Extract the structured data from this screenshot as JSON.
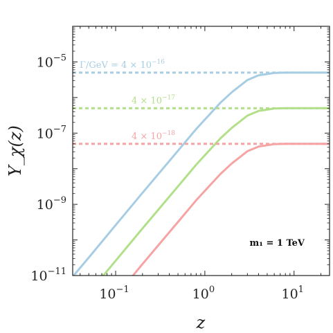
{
  "chart_data": {
    "type": "line",
    "title": "",
    "xlabel": "z",
    "ylabel": "Y_χ(z)",
    "xscale": "log",
    "yscale": "log",
    "xlim": [
      0.033,
      25
    ],
    "ylim": [
      1e-11,
      0.0001
    ],
    "grid": false,
    "x_ticks": [
      {
        "value": 0.1,
        "base": "10",
        "exp": "−1"
      },
      {
        "value": 1,
        "base": "10",
        "exp": "0"
      },
      {
        "value": 10,
        "base": "10",
        "exp": "1"
      }
    ],
    "y_ticks": [
      {
        "value": 1e-11,
        "base": "10",
        "exp": "−11"
      },
      {
        "value": 1e-09,
        "base": "10",
        "exp": "−9"
      },
      {
        "value": 1e-07,
        "base": "10",
        "exp": "−7"
      },
      {
        "value": 1e-05,
        "base": "10",
        "exp": "−5"
      }
    ],
    "inset_label": "m₁ = 1 TeV",
    "series": [
      {
        "annotation": "Γ/GeV = 4 × 10",
        "annotation_exp": "−16",
        "color": "#a6cde3",
        "plateau": 5e-06,
        "x": [
          0.033,
          0.05,
          0.1,
          0.2,
          0.3,
          0.5,
          0.8,
          1,
          1.5,
          2,
          3,
          4,
          6,
          8,
          10,
          15,
          25
        ],
        "y": [
          9.3e-12,
          3.2e-11,
          2.6e-10,
          2.1e-09,
          7e-09,
          3.2e-08,
          1.3e-07,
          2.4e-07,
          7.2e-07,
          1.4e-06,
          3.1e-06,
          4.2e-06,
          4.9e-06,
          5e-06,
          5e-06,
          5e-06,
          5e-06
        ]
      },
      {
        "annotation": "4 × 10",
        "annotation_exp": "−17",
        "color": "#b2df8a",
        "plateau": 5e-07,
        "x": [
          0.065,
          0.1,
          0.2,
          0.3,
          0.5,
          0.8,
          1,
          1.5,
          2,
          3,
          4,
          6,
          8,
          10,
          15,
          25
        ],
        "y": [
          7.1e-12,
          2.6e-11,
          2.1e-10,
          7e-10,
          3.2e-09,
          1.3e-08,
          2.4e-08,
          7.2e-08,
          1.4e-07,
          3.1e-07,
          4.2e-07,
          4.9e-07,
          5e-07,
          5e-07,
          5e-07,
          5e-07
        ]
      },
      {
        "annotation": "4 × 10",
        "annotation_exp": "−18",
        "color": "#f6a3a3",
        "plateau": 5e-08,
        "x": [
          0.14,
          0.2,
          0.3,
          0.5,
          0.8,
          1,
          1.5,
          2,
          3,
          4,
          6,
          8,
          10,
          15,
          25
        ],
        "y": [
          7.1e-12,
          2.1e-11,
          7e-11,
          3.2e-10,
          1.3e-09,
          2.4e-09,
          7.2e-09,
          1.4e-08,
          3.1e-08,
          4.2e-08,
          4.9e-08,
          5e-08,
          5e-08,
          5e-08,
          5e-08
        ]
      }
    ]
  }
}
